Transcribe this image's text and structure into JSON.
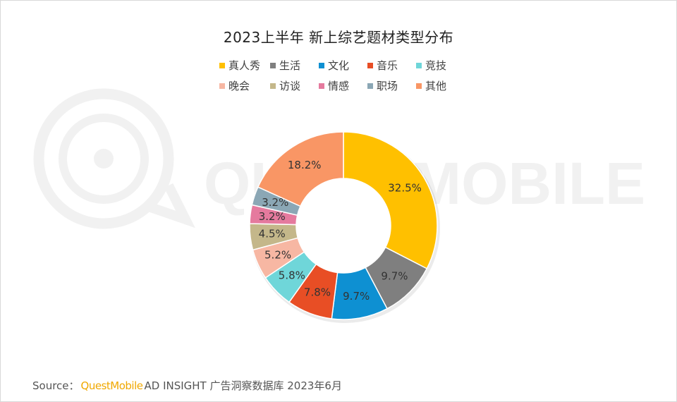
{
  "chart_data": {
    "type": "pie",
    "variant": "donut",
    "title": "2023上半年 新上综艺题材类型分布",
    "slices": [
      {
        "label": "真人秀",
        "value": 32.5,
        "value_label": "32.5%",
        "color": "#ffc000"
      },
      {
        "label": "生活",
        "value": 9.7,
        "value_label": "9.7%",
        "color": "#7f7f7f"
      },
      {
        "label": "文化",
        "value": 9.7,
        "value_label": "9.7%",
        "color": "#0e90d2"
      },
      {
        "label": "音乐",
        "value": 7.8,
        "value_label": "7.8%",
        "color": "#e84e25"
      },
      {
        "label": "竞技",
        "value": 5.8,
        "value_label": "5.8%",
        "color": "#6fd6d9"
      },
      {
        "label": "晚会",
        "value": 5.2,
        "value_label": "5.2%",
        "color": "#f7b7a3"
      },
      {
        "label": "访谈",
        "value": 4.5,
        "value_label": "4.5%",
        "color": "#c4b78a"
      },
      {
        "label": "情感",
        "value": 3.2,
        "value_label": "3.2%",
        "color": "#e57a9e"
      },
      {
        "label": "职场",
        "value": 3.2,
        "value_label": "3.2%",
        "color": "#8ba7b5"
      },
      {
        "label": "其他",
        "value": 18.2,
        "value_label": "18.2%",
        "color": "#f99665"
      }
    ],
    "legend_position": "top",
    "start": "12 o'clock",
    "direction": "clockwise"
  },
  "source": {
    "prefix": "Source：",
    "brand": "QuestMobile",
    "text": "AD INSIGHT 广告洞察数据库 2023年6月"
  },
  "watermark": {
    "text": "QUESTMOBILE",
    "color": "#f0f0f0"
  }
}
